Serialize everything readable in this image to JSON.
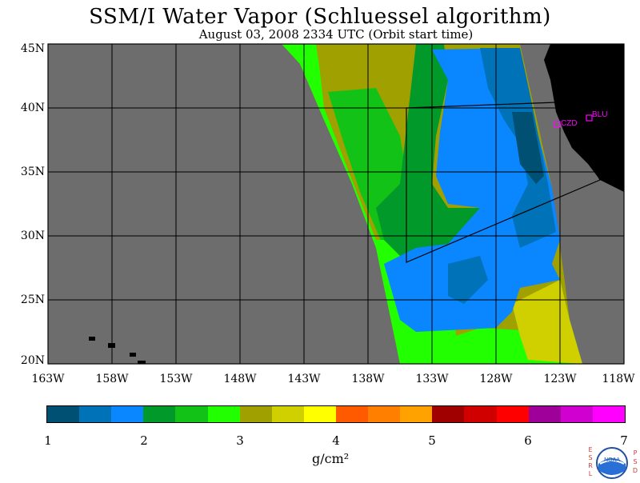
{
  "title": "SSM/I Water Vapor (Schluessel algorithm)",
  "subtitle": "August 03, 2008  2334 UTC  (Orbit start time)",
  "map": {
    "lon_range": [
      -163,
      -118
    ],
    "lat_range": [
      20,
      45
    ],
    "lat_labels": [
      "45N",
      "40N",
      "35N",
      "30N",
      "25N",
      "20N"
    ],
    "lon_labels": [
      "163W",
      "158W",
      "153W",
      "148W",
      "143W",
      "138W",
      "133W",
      "128W",
      "123W",
      "118W"
    ],
    "background_color": "#6d6d6d",
    "land_color": "#000000",
    "stations": [
      {
        "label": "CZD",
        "color": "#ff00ff"
      },
      {
        "label": "BLU",
        "color": "#ff00ff"
      }
    ]
  },
  "colorbar": {
    "units": "g/cm²",
    "tick_labels": [
      "1",
      "2",
      "3",
      "4",
      "5",
      "6",
      "7"
    ],
    "colors": [
      "#005073",
      "#0072b8",
      "#0a86ff",
      "#00992a",
      "#12c217",
      "#21ff00",
      "#a0a000",
      "#d0d000",
      "#ffff00",
      "#ff5a00",
      "#ff7f00",
      "#ffa200",
      "#a00000",
      "#d00000",
      "#ff0000",
      "#a0009a",
      "#d000d0",
      "#ff00ff"
    ]
  },
  "logo": {
    "left_text": "ESRL",
    "right_text": "PSD",
    "center_text": "NOAA"
  }
}
